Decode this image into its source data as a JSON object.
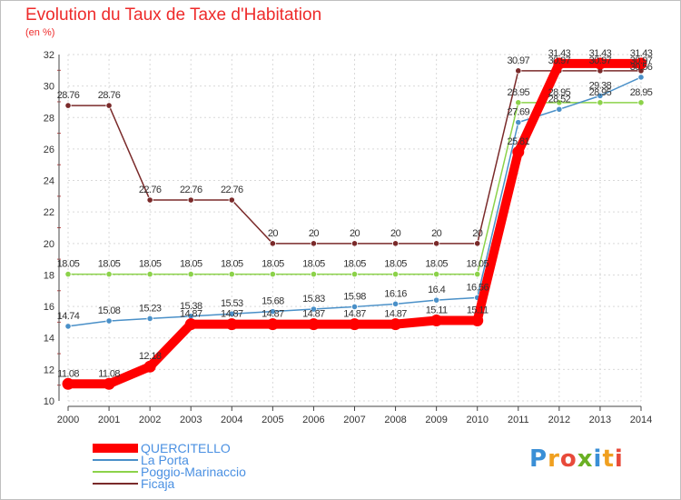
{
  "title": "Evolution du Taux de Taxe d'Habitation",
  "subtitle": "(en %)",
  "logo": {
    "text": "Proxiti",
    "colors": [
      "#3a8fd6",
      "#f0a020",
      "#e84a3a",
      "#6ab023",
      "#3a8fd6",
      "#f0a020",
      "#e84a3a"
    ]
  },
  "chart_data": {
    "type": "line",
    "x": [
      "2000",
      "2001",
      "2002",
      "2003",
      "2004",
      "2005",
      "2006",
      "2007",
      "2008",
      "2009",
      "2010",
      "2011",
      "2012",
      "2013",
      "2014"
    ],
    "ylim": [
      10,
      32
    ],
    "yticks": [
      10,
      12,
      14,
      16,
      18,
      20,
      22,
      24,
      26,
      28,
      30,
      32
    ],
    "grid": true,
    "legend_position": "bottom-left",
    "series": [
      {
        "name": "QUERCITELLO",
        "color": "#ff0000",
        "values": [
          11.08,
          11.08,
          12.18,
          14.87,
          14.87,
          14.87,
          14.87,
          14.87,
          14.87,
          15.11,
          15.11,
          25.81,
          31.43,
          31.43,
          31.43
        ],
        "labels": [
          "11.08",
          "11.08",
          "12.18",
          "14.87",
          "14.87",
          "14.87",
          "14.87",
          "14.87",
          "14.87",
          "15.11",
          "15.11",
          "25.81",
          "31.43",
          "31.43",
          "31.43"
        ]
      },
      {
        "name": "La Porta",
        "color": "#4a90c8",
        "values": [
          14.74,
          15.08,
          15.23,
          15.38,
          15.53,
          15.68,
          15.83,
          15.98,
          16.16,
          16.4,
          16.56,
          27.69,
          28.52,
          29.38,
          30.56
        ],
        "labels": [
          "14.74",
          "15.08",
          "15.23",
          "15.38",
          "15.53",
          "15.68",
          "15.83",
          "15.98",
          "16.16",
          "16.4",
          "16.56",
          "27.69",
          "28.52",
          "29.38",
          "30.56"
        ]
      },
      {
        "name": "Poggio-Marinaccio",
        "color": "#8cd24a",
        "values": [
          18.05,
          18.05,
          18.05,
          18.05,
          18.05,
          18.05,
          18.05,
          18.05,
          18.05,
          18.05,
          18.05,
          28.95,
          28.95,
          28.95,
          28.95
        ],
        "labels": [
          "18.05",
          "18.05",
          "18.05",
          "18.05",
          "18.05",
          "18.05",
          "18.05",
          "18.05",
          "18.05",
          "18.05",
          "18.05",
          "28.95",
          "28.95",
          "28.95",
          "28.95"
        ]
      },
      {
        "name": "Ficaja",
        "color": "#7a2a2a",
        "values": [
          28.76,
          28.76,
          22.76,
          22.76,
          22.76,
          20,
          20,
          20,
          20,
          20,
          20,
          30.97,
          30.97,
          30.97,
          30.97
        ],
        "labels": [
          "28.76",
          "28.76",
          "22.76",
          "22.76",
          "22.76",
          "20",
          "20",
          "20",
          "20",
          "20",
          "20",
          "30.97",
          "30.97",
          "30.97",
          "30.97"
        ]
      }
    ]
  }
}
